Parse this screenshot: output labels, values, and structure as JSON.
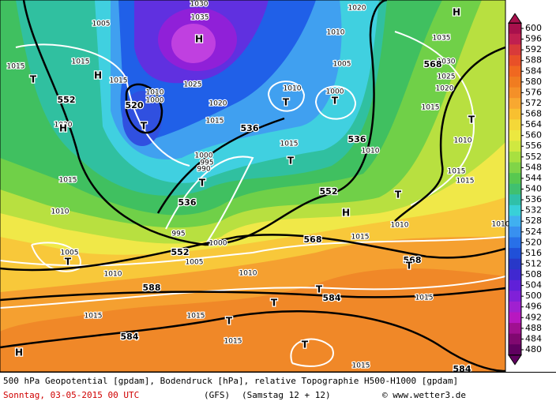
{
  "caption": {
    "line1": "500 hPa Geopotential [gpdam], Bodendruck [hPa], relative Topographie H500-H1000 [gpdam]",
    "date": "Sonntag, 03-05-2015  00 UTC",
    "model": "(GFS)",
    "run": "(Samstag 12 + 12)",
    "credit": "© www.wetter3.de"
  },
  "isobar_labels": [
    "1030",
    "1035",
    "1005",
    "1015",
    "1015",
    "1015",
    "1010",
    "1000",
    "1025",
    "1020",
    "1015",
    "1030",
    "1015",
    "1010",
    "1005",
    "1010",
    "1015",
    "1015",
    "1015",
    "1010",
    "1000",
    "1005",
    "995",
    "1000",
    "995",
    "990",
    "1010",
    "1015",
    "1000",
    "1005",
    "1010",
    "1020",
    "1030",
    "1025",
    "1020",
    "1035",
    "1015",
    "1010",
    "1015",
    "1015",
    "1010",
    "1010",
    "1015",
    "1015",
    "1015",
    "1010"
  ],
  "geopotential_labels": [
    "552",
    "520",
    "536",
    "536",
    "552",
    "536",
    "552",
    "568",
    "568",
    "588",
    "584",
    "584",
    "584",
    "568"
  ],
  "centers": [
    "H",
    "H",
    "H",
    "H",
    "H",
    "H",
    "T",
    "T",
    "T",
    "T",
    "T",
    "T",
    "T",
    "T",
    "T",
    "T",
    "T",
    "T",
    "T",
    "T"
  ],
  "colorbar": {
    "levels": [
      600,
      596,
      592,
      588,
      584,
      580,
      576,
      572,
      568,
      564,
      560,
      556,
      552,
      548,
      544,
      540,
      536,
      532,
      528,
      524,
      520,
      516,
      512,
      508,
      504,
      500,
      496,
      492,
      488,
      484,
      480
    ],
    "colors": [
      "#a8104c",
      "#c02050",
      "#d83a3a",
      "#e85028",
      "#f06820",
      "#f07c20",
      "#f49028",
      "#f8a830",
      "#f8c030",
      "#f4d838",
      "#ece840",
      "#d0e840",
      "#a8e040",
      "#80d448",
      "#58c850",
      "#40c070",
      "#30c0a8",
      "#38d0d8",
      "#40b0f0",
      "#3890f0",
      "#2870e8",
      "#2050d8",
      "#2838c8",
      "#4028d0",
      "#6020d8",
      "#8020d8",
      "#a020d0",
      "#b818c0",
      "#a01090",
      "#800870",
      "#600060"
    ]
  }
}
